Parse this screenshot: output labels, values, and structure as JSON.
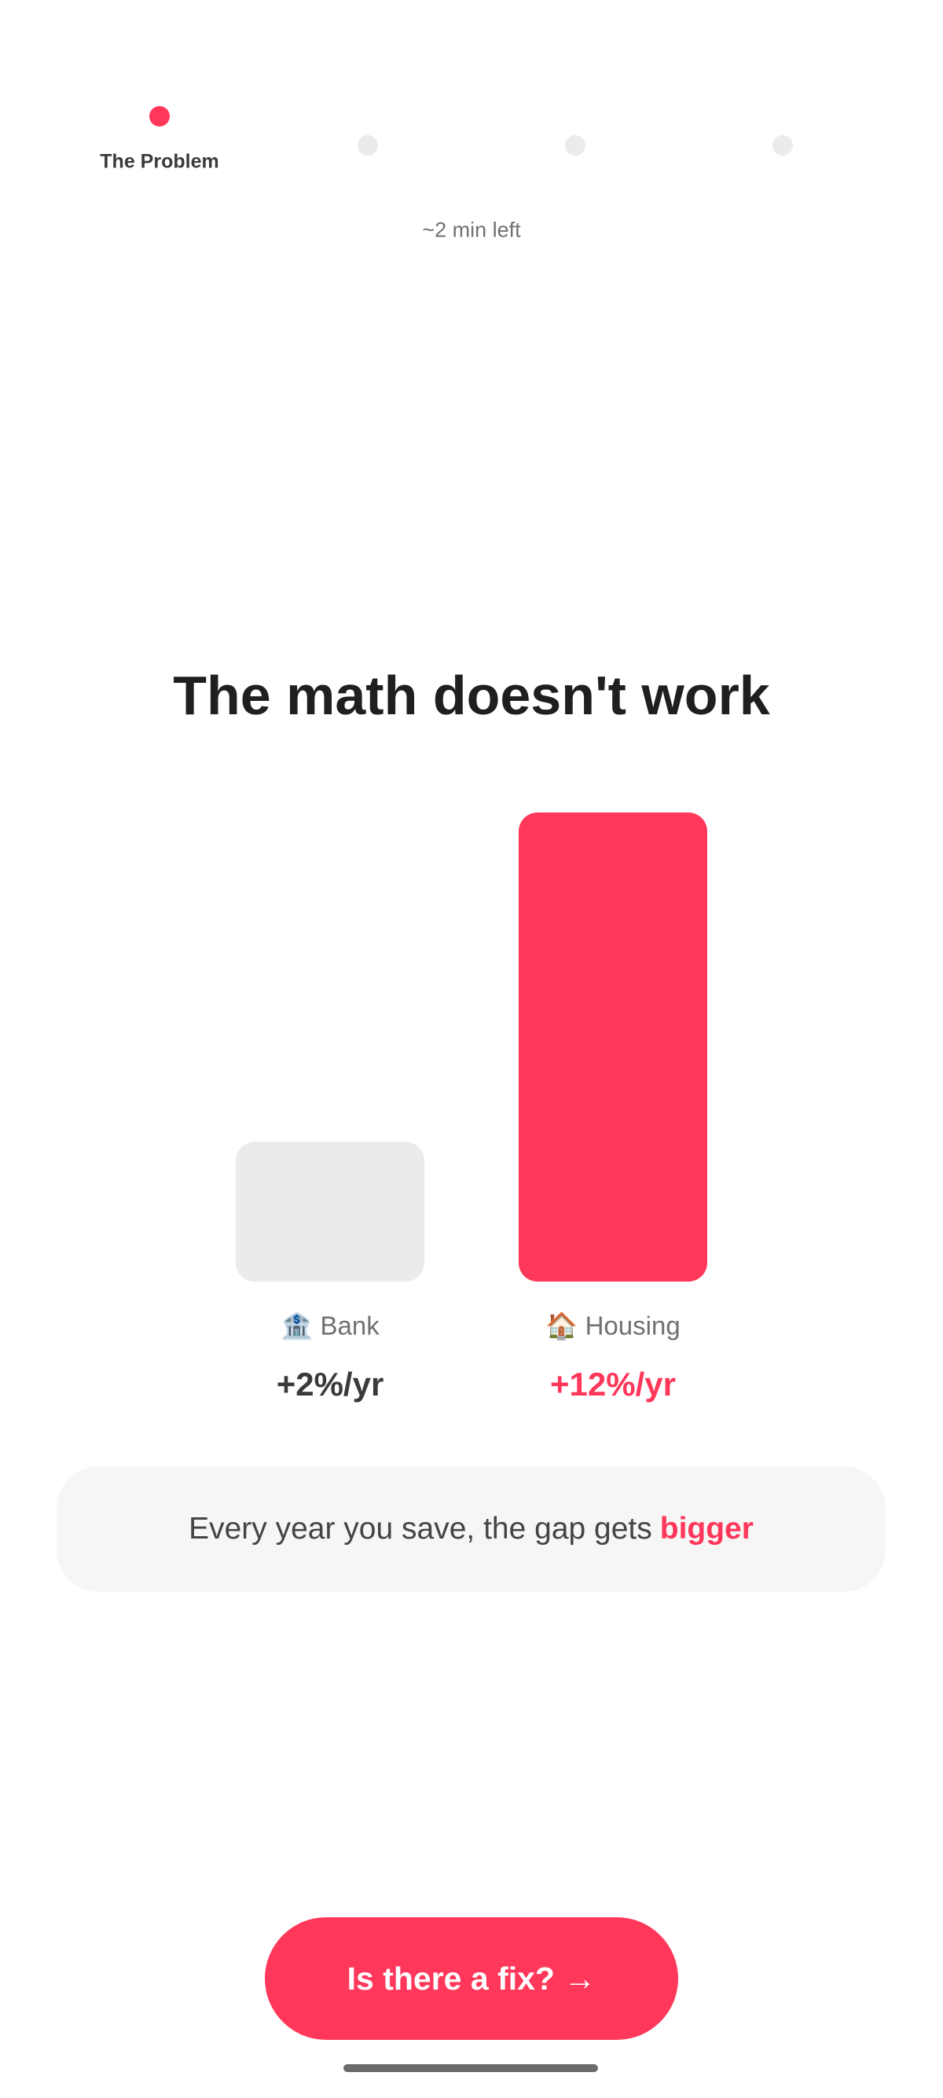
{
  "progress": {
    "steps": [
      {
        "label": "The Problem",
        "active": true
      },
      {
        "label": "",
        "active": false
      },
      {
        "label": "",
        "active": false
      },
      {
        "label": "",
        "active": false
      }
    ],
    "current_step": 1,
    "total_steps": 4,
    "time_left": "~2 min left"
  },
  "title": "The math doesn't work",
  "comparison": {
    "bars": [
      {
        "icon": "bank-icon",
        "emoji": "🏦",
        "label": "Bank",
        "value": "+2%/yr",
        "rate": 2,
        "color": "#ebebeb",
        "value_color": "#3a3a3a"
      },
      {
        "icon": "house-icon",
        "emoji": "🏠",
        "label": "Housing",
        "value": "+12%/yr",
        "rate": 12,
        "color": "#ff375a",
        "value_color": "#ff375a"
      }
    ]
  },
  "info": {
    "text": "Every year you save, the gap gets",
    "highlight": "bigger"
  },
  "cta": {
    "label": "Is there a fix? →"
  },
  "colors": {
    "accent": "#ff375a",
    "inactive": "#ebebeb"
  }
}
